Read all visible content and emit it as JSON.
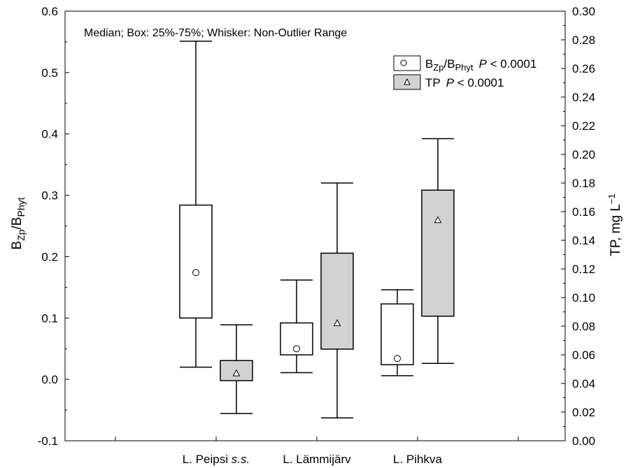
{
  "chart_data": {
    "type": "boxplot",
    "note": "Median; Box: 25%-75%; Whisker: Non-Outlier Range",
    "categories": [
      "L. Peipsi s.s.",
      "L. Lämmijärv",
      "L. Pihkva"
    ],
    "category_parts": [
      [
        {
          "text": "L. Peipsi ",
          "italic": false
        },
        {
          "text": "s.s.",
          "italic": true
        }
      ],
      [
        {
          "text": "L. Lämmijärv",
          "italic": false
        }
      ],
      [
        {
          "text": "L. Pihkva",
          "italic": false
        }
      ]
    ],
    "left_axis": {
      "label_main": "B",
      "label_sub1": "Zp",
      "label_sep": "/B",
      "label_sub2": "Phyt",
      "ylim": [
        -0.1,
        0.6
      ],
      "ticks": [
        "-0.1",
        "0.0",
        "0.1",
        "0.2",
        "0.3",
        "0.4",
        "0.5",
        "0.6"
      ]
    },
    "right_axis": {
      "label": "TP, mg L",
      "label_sup": "−1",
      "ylim": [
        0,
        0.3
      ],
      "ticks": [
        "0.00",
        "0.02",
        "0.04",
        "0.06",
        "0.08",
        "0.10",
        "0.12",
        "0.14",
        "0.16",
        "0.18",
        "0.20",
        "0.22",
        "0.24",
        "0.26",
        "0.28",
        "0.30"
      ]
    },
    "series": [
      {
        "legend_main": "B",
        "legend_sub1": "Zp",
        "legend_sep": "/B",
        "legend_sub2": "Phyt",
        "legend_p": "P",
        "legend_stat": " < 0.0001",
        "axis": "left",
        "fill": "#ffffff",
        "marker": "circle",
        "boxes": [
          {
            "category": "L. Peipsi s.s.",
            "median": 0.174,
            "q1": 0.1,
            "q3": 0.284,
            "min": 0.02,
            "max": 0.551
          },
          {
            "category": "L. Lämmijärv",
            "median": 0.05,
            "q1": 0.04,
            "q3": 0.092,
            "min": 0.011,
            "max": 0.162
          },
          {
            "category": "L. Pihkva",
            "median": 0.034,
            "q1": 0.024,
            "q3": 0.123,
            "min": 0.006,
            "max": 0.146
          }
        ]
      },
      {
        "legend_main": "TP",
        "legend_p": "P",
        "legend_stat": " < 0.0001",
        "axis": "right",
        "fill": "#d2d2d2",
        "marker": "triangle",
        "boxes": [
          {
            "category": "L. Peipsi s.s.",
            "median": 0.047,
            "q1": 0.042,
            "q3": 0.056,
            "min": 0.019,
            "max": 0.081
          },
          {
            "category": "L. Lämmijärv",
            "median": 0.082,
            "q1": 0.064,
            "q3": 0.131,
            "min": 0.016,
            "max": 0.18
          },
          {
            "category": "L. Pihkva",
            "median": 0.154,
            "q1": 0.087,
            "q3": 0.175,
            "min": 0.054,
            "max": 0.211
          }
        ]
      }
    ],
    "legend_position": "top-right",
    "grid": false
  }
}
